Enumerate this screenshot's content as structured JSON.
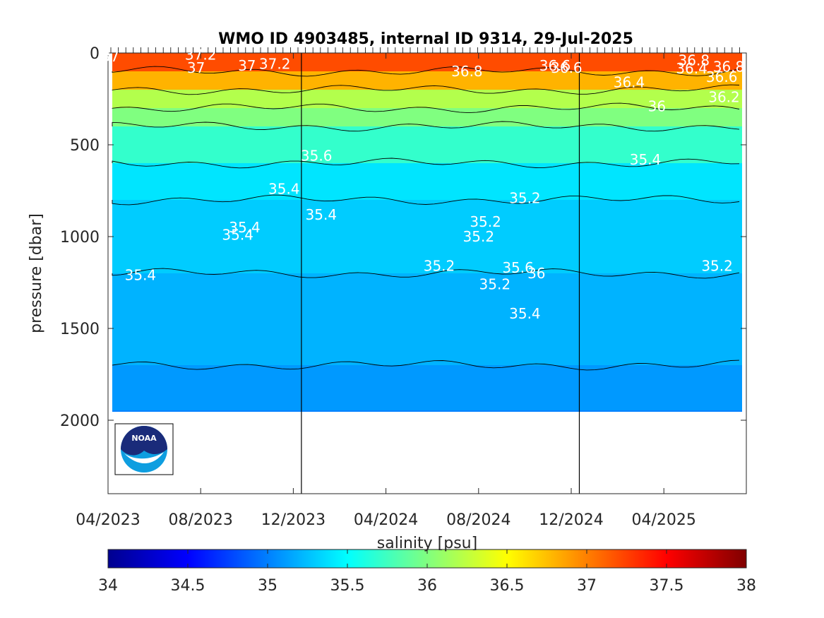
{
  "chart_data": {
    "type": "heatmap",
    "title": "WMO ID 4903485, internal ID 9314, 29-Jul-2025",
    "xlabel": "",
    "ylabel": "pressure [dbar]",
    "x_ticks": [
      "04/2023",
      "08/2023",
      "12/2023",
      "04/2024",
      "08/2024",
      "12/2024",
      "04/2025"
    ],
    "y_ticks": [
      "0",
      "500",
      "1000",
      "1500",
      "2000"
    ],
    "ylim": [
      0,
      2400
    ],
    "y_reversed": true,
    "colorbar": {
      "label": "salinity [psu]",
      "range": [
        34,
        38
      ],
      "ticks": [
        "34",
        "34.5",
        "35",
        "35.5",
        "36",
        "36.5",
        "37",
        "37.5",
        "38"
      ],
      "colormap": "jet"
    },
    "year_boundaries": [
      "01/2024",
      "01/2025"
    ],
    "max_profile_pressure": 1950,
    "layers": [
      {
        "pressure": 0,
        "salinity": 37.2
      },
      {
        "pressure": 100,
        "salinity": 36.8
      },
      {
        "pressure": 200,
        "salinity": 36.2
      },
      {
        "pressure": 300,
        "salinity": 36.0
      },
      {
        "pressure": 400,
        "salinity": 35.7
      },
      {
        "pressure": 600,
        "salinity": 35.4
      },
      {
        "pressure": 800,
        "salinity": 35.3
      },
      {
        "pressure": 1200,
        "salinity": 35.2
      },
      {
        "pressure": 1700,
        "salinity": 35.1
      },
      {
        "pressure": 1950,
        "salinity": 35.0
      }
    ],
    "contour_labels": [
      {
        "text": "37",
        "x_month": 0.1,
        "p": 20
      },
      {
        "text": "37.2",
        "x_month": 4.0,
        "p": 10
      },
      {
        "text": "37",
        "x_month": 3.8,
        "p": 80
      },
      {
        "text": "37",
        "x_month": 6.0,
        "p": 70
      },
      {
        "text": "37.2",
        "x_month": 7.2,
        "p": 60
      },
      {
        "text": "36.8",
        "x_month": 15.5,
        "p": 100
      },
      {
        "text": "36.6",
        "x_month": 19.3,
        "p": 70
      },
      {
        "text": "36.6",
        "x_month": 19.8,
        "p": 80
      },
      {
        "text": "36.8",
        "x_month": 25.3,
        "p": 40
      },
      {
        "text": "36.4",
        "x_month": 25.2,
        "p": 85
      },
      {
        "text": "36.8",
        "x_month": 26.8,
        "p": 75
      },
      {
        "text": "36.6",
        "x_month": 26.5,
        "p": 130
      },
      {
        "text": "36.4",
        "x_month": 22.5,
        "p": 160
      },
      {
        "text": "36.2",
        "x_month": 26.6,
        "p": 240
      },
      {
        "text": "36",
        "x_month": 23.7,
        "p": 290
      },
      {
        "text": "35.6",
        "x_month": 9.0,
        "p": 560
      },
      {
        "text": "35.4",
        "x_month": 23.2,
        "p": 580
      },
      {
        "text": "35.4",
        "x_month": 7.6,
        "p": 740
      },
      {
        "text": "35.2",
        "x_month": 18.0,
        "p": 790
      },
      {
        "text": "35.4",
        "x_month": 9.2,
        "p": 880
      },
      {
        "text": "35.4",
        "x_month": 5.9,
        "p": 950
      },
      {
        "text": "35.4",
        "x_month": 5.6,
        "p": 990
      },
      {
        "text": "35.2",
        "x_month": 16.3,
        "p": 920
      },
      {
        "text": "35.2",
        "x_month": 16.0,
        "p": 1000
      },
      {
        "text": "35.2",
        "x_month": 14.3,
        "p": 1160
      },
      {
        "text": "35.6",
        "x_month": 17.7,
        "p": 1170
      },
      {
        "text": "36",
        "x_month": 18.5,
        "p": 1200
      },
      {
        "text": "35.2",
        "x_month": 16.7,
        "p": 1260
      },
      {
        "text": "35.2",
        "x_month": 26.3,
        "p": 1160
      },
      {
        "text": "35.4",
        "x_month": 1.4,
        "p": 1210
      },
      {
        "text": "35.4",
        "x_month": 18.0,
        "p": 1420
      }
    ]
  }
}
